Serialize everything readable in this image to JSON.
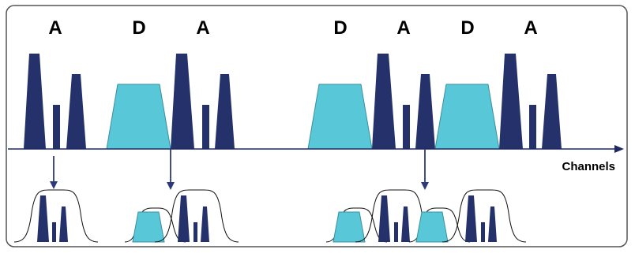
{
  "colors": {
    "analog_fill": "#25316a",
    "digital_fill": "#58c7d8",
    "digital_stroke": "#3a8fa0",
    "frame_stroke": "#555555",
    "axis": "#1f2b5e",
    "arrow": "#2c3a7c",
    "envelope": "#111111"
  },
  "top_labels": [
    {
      "id": "label-a-1",
      "text": "A"
    },
    {
      "id": "label-d-1",
      "text": "D"
    },
    {
      "id": "label-a-2",
      "text": "A"
    },
    {
      "id": "label-d-2",
      "text": "D"
    },
    {
      "id": "label-a-3",
      "text": "A"
    },
    {
      "id": "label-d-3",
      "text": "D"
    },
    {
      "id": "label-a-4",
      "text": "A"
    }
  ],
  "axis": {
    "label": "Channels"
  }
}
